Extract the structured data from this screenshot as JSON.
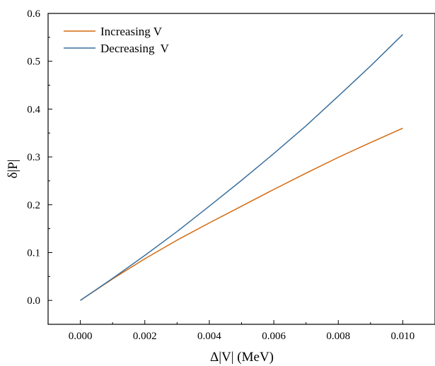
{
  "chart_data": {
    "type": "line",
    "xlabel": "Δ|V| (MeV)",
    "ylabel": "δ|P|",
    "xlim": [
      -0.001,
      0.011
    ],
    "ylim": [
      -0.05,
      0.6
    ],
    "x_ticks": [
      0.0,
      0.002,
      0.004,
      0.006,
      0.008,
      0.01
    ],
    "x_tick_labels": [
      "0.000",
      "0.002",
      "0.004",
      "0.006",
      "0.008",
      "0.010"
    ],
    "y_ticks": [
      0.0,
      0.1,
      0.2,
      0.3,
      0.4,
      0.5,
      0.6
    ],
    "y_tick_labels": [
      "0.0",
      "0.1",
      "0.2",
      "0.3",
      "0.4",
      "0.5",
      "0.6"
    ],
    "grid": false,
    "legend_position": "top-left",
    "series": [
      {
        "name": "Increasing V",
        "color": "#d46a0e",
        "x": [
          0.0,
          0.001,
          0.002,
          0.003,
          0.004,
          0.005,
          0.006,
          0.007,
          0.008,
          0.009,
          0.01
        ],
        "y": [
          0.0,
          0.045,
          0.087,
          0.126,
          0.162,
          0.197,
          0.232,
          0.266,
          0.299,
          0.33,
          0.36
        ]
      },
      {
        "name": "Decreasing  V",
        "color": "#3a6f9e",
        "x": [
          0.0,
          0.001,
          0.002,
          0.003,
          0.004,
          0.005,
          0.006,
          0.007,
          0.008,
          0.009,
          0.01
        ],
        "y": [
          0.0,
          0.046,
          0.094,
          0.144,
          0.197,
          0.251,
          0.307,
          0.365,
          0.427,
          0.49,
          0.556
        ]
      }
    ]
  }
}
